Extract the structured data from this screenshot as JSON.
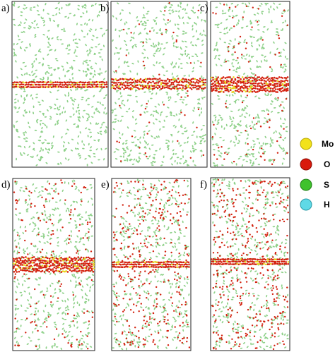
{
  "panels": [
    {
      "label": "a)"
    },
    {
      "label": "b)"
    },
    {
      "label": "c)"
    },
    {
      "label": "d)"
    },
    {
      "label": "e)"
    },
    {
      "label": "f)"
    }
  ],
  "legend": [
    {
      "label": "Mo"
    },
    {
      "label": "O"
    },
    {
      "label": "S"
    },
    {
      "label": "H"
    }
  ]
}
